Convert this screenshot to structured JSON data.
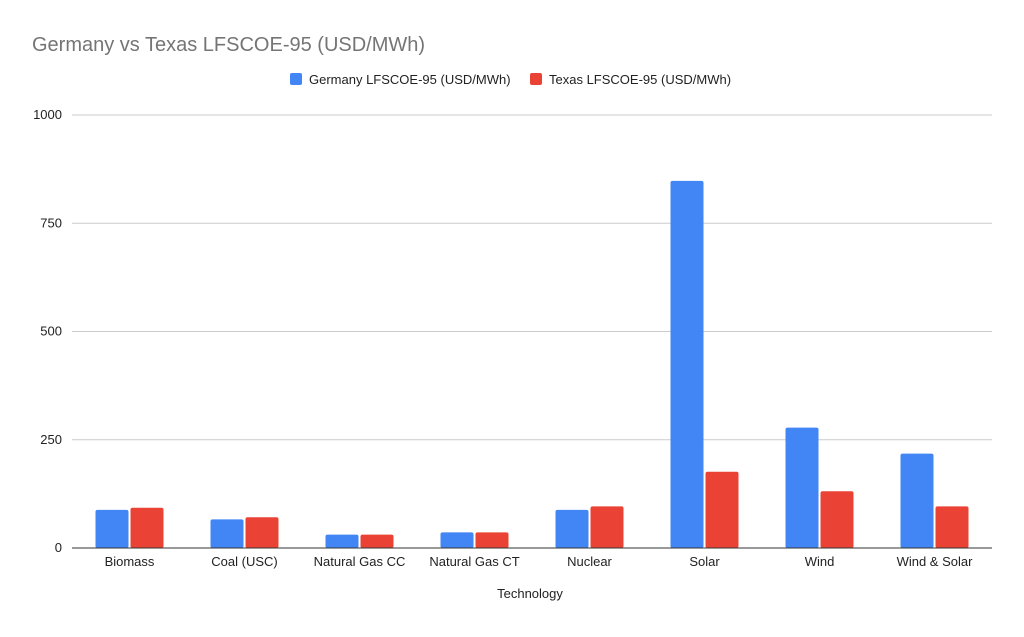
{
  "chart_data": {
    "type": "bar",
    "title": "Germany vs Texas LFSCOE-95 (USD/MWh)",
    "xlabel": "Technology",
    "ylabel": "",
    "ylim": [
      0,
      1000
    ],
    "yticks": [
      0,
      250,
      500,
      750,
      1000
    ],
    "grid": true,
    "legend_position": "top",
    "categories": [
      "Biomass",
      "Coal (USC)",
      "Natural Gas CC",
      "Natural Gas CT",
      "Nuclear",
      "Solar",
      "Wind",
      "Wind & Solar"
    ],
    "series": [
      {
        "name": "Germany LFSCOE-95 (USD/MWh)",
        "color": "#4285f4",
        "values": [
          88,
          66,
          31,
          36,
          88,
          848,
          278,
          218
        ]
      },
      {
        "name": "Texas LFSCOE-95 (USD/MWh)",
        "color": "#ea4335",
        "values": [
          93,
          71,
          31,
          36,
          96,
          176,
          131,
          96
        ]
      }
    ],
    "colors": {
      "title": "#757575",
      "axis_text": "#222222",
      "gridline": "#cccccc",
      "baseline": "#333333"
    }
  }
}
